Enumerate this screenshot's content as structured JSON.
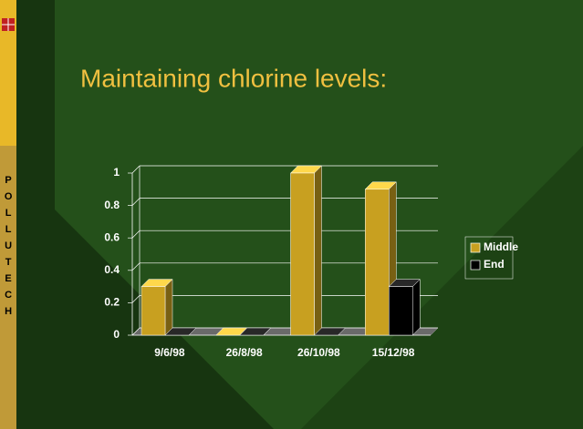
{
  "sidebar_text": "POLLUTECH",
  "chart_data": {
    "type": "bar",
    "title": "Maintaining chlorine levels:",
    "categories": [
      "9/6/98",
      "26/8/98",
      "26/10/98",
      "15/12/98"
    ],
    "series": [
      {
        "name": "Middle",
        "color": "#c8a020",
        "values": [
          0.3,
          0,
          1,
          0.9
        ]
      },
      {
        "name": "End",
        "color": "#000000",
        "values": [
          0,
          0,
          0,
          0.3
        ]
      }
    ],
    "ylim": [
      0,
      1
    ],
    "yticks": [
      0,
      0.2,
      0.4,
      0.6,
      0.8,
      1
    ],
    "grid": true,
    "legend": "right"
  }
}
